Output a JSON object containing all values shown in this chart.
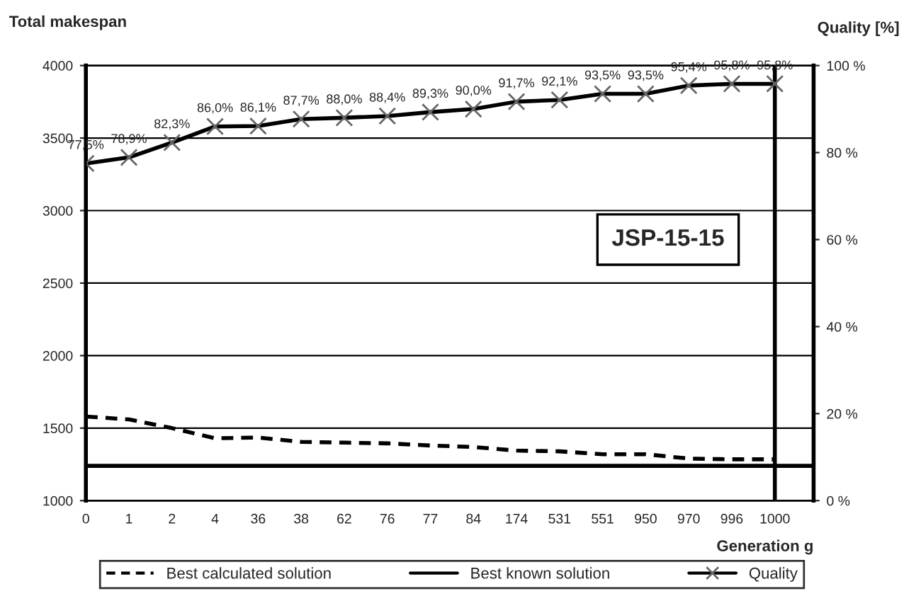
{
  "chart_data": {
    "type": "line",
    "ylabel": "Total makespan",
    "y2label": "Quality [%]",
    "xlabel": "Generation g",
    "categories": [
      "0",
      "1",
      "2",
      "4",
      "36",
      "38",
      "62",
      "76",
      "77",
      "84",
      "174",
      "531",
      "551",
      "950",
      "970",
      "996",
      "1000"
    ],
    "series": [
      {
        "name": "Best calculated solution",
        "color": "#000000",
        "line_style": "dashed",
        "marker": "none",
        "values": [
          1580,
          1560,
          1500,
          1430,
          1435,
          1405,
          1400,
          1395,
          1380,
          1370,
          1345,
          1340,
          1320,
          1320,
          1290,
          1285,
          1285
        ]
      },
      {
        "name": "Quality",
        "color": "#000000",
        "line_style": "solid",
        "marker": "cross",
        "axis": "y2",
        "values": [
          77.5,
          78.9,
          82.3,
          86.0,
          86.1,
          87.7,
          88.0,
          88.4,
          89.3,
          90.0,
          91.7,
          92.1,
          93.5,
          93.5,
          95.4,
          95.8,
          95.8
        ],
        "value_labels": [
          "77,5%",
          "78,9%",
          "82,3%",
          "86,0%",
          "86,1%",
          "87,7%",
          "88,0%",
          "88,4%",
          "89,3%",
          "90,0%",
          "91,7%",
          "92,1%",
          "93,5%",
          "93,5%",
          "95,4%",
          "95,8%",
          "95,8%"
        ]
      }
    ],
    "ref_lines": [
      {
        "axis": "y",
        "value": 1240,
        "label": "Best known solution",
        "color": "#000000",
        "line_style": "solid"
      },
      {
        "axis": "x",
        "value": "1000",
        "color": "#000000",
        "line_style": "solid"
      }
    ],
    "ylim": [
      1000,
      4000
    ],
    "yticks": [
      1000,
      1500,
      2000,
      2500,
      3000,
      3500,
      4000
    ],
    "y2lim": [
      0,
      100
    ],
    "y2ticks": [
      {
        "value": 0,
        "label": "0 %"
      },
      {
        "value": 20,
        "label": "20 %"
      },
      {
        "value": 40,
        "label": "40 %"
      },
      {
        "value": 60,
        "label": "60 %"
      },
      {
        "value": 80,
        "label": "80 %"
      },
      {
        "value": 100,
        "label": "100 %"
      }
    ],
    "annotations": [
      "JSP-15-15"
    ],
    "grid": "y",
    "legend": "bottom"
  }
}
